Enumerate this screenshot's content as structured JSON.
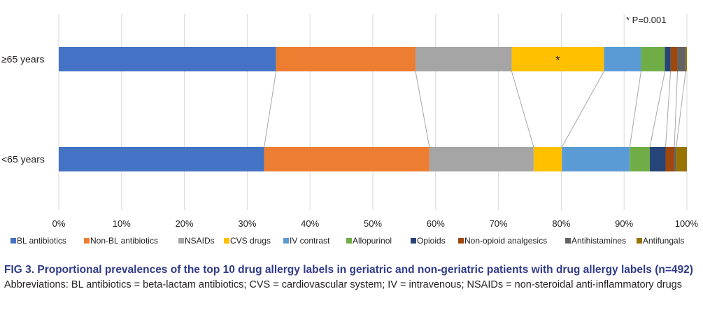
{
  "chart_data": {
    "type": "bar",
    "orientation": "horizontal",
    "stacked": true,
    "normalized": true,
    "categories": [
      "≥65 years",
      "<65 years"
    ],
    "series": [
      {
        "name": "BL antibiotics",
        "color": "#4472c4",
        "values": [
          34.6,
          32.7
        ]
      },
      {
        "name": "Non-BL antibiotics",
        "color": "#ed7d31",
        "values": [
          22.2,
          26.3
        ]
      },
      {
        "name": "NSAIDs",
        "color": "#a5a5a5",
        "values": [
          15.3,
          16.6
        ]
      },
      {
        "name": "CVS drugs",
        "color": "#ffc000",
        "values": [
          14.7,
          4.5
        ]
      },
      {
        "name": "IV contrast",
        "color": "#5b9bd5",
        "values": [
          5.9,
          10.8
        ]
      },
      {
        "name": "Allopurinol",
        "color": "#70ad47",
        "values": [
          3.8,
          3.2
        ]
      },
      {
        "name": "Opioids",
        "color": "#264478",
        "values": [
          0.9,
          2.5
        ]
      },
      {
        "name": "Non-opioid analgesics",
        "color": "#9e480e",
        "values": [
          1.1,
          1.4
        ]
      },
      {
        "name": "Antihistamines",
        "color": "#636363",
        "values": [
          1.3,
          0.3
        ]
      },
      {
        "name": "Antifungals",
        "color": "#997300",
        "values": [
          0.2,
          1.7
        ]
      }
    ],
    "xlim": [
      0,
      100
    ],
    "x_ticks": [
      "0%",
      "10%",
      "20%",
      "30%",
      "40%",
      "50%",
      "60%",
      "70%",
      "80%",
      "90%",
      "100%"
    ],
    "grid": "vertical",
    "legend_position": "bottom",
    "annotation": {
      "text": "*",
      "category": "≥65 years",
      "series": "CVS drugs"
    },
    "significance_note": "* P=0.001"
  },
  "caption": {
    "title": "FIG 3.  Proportional prevalences of the top 10 drug allergy labels in geriatric and non-geriatric patients with drug allergy labels (n=492)",
    "abbreviations": "Abbreviations: BL antibiotics = beta-lactam antibiotics; CVS = cardiovascular system; IV = intravenous; NSAIDs = non-steroidal anti-inflammatory drugs"
  }
}
